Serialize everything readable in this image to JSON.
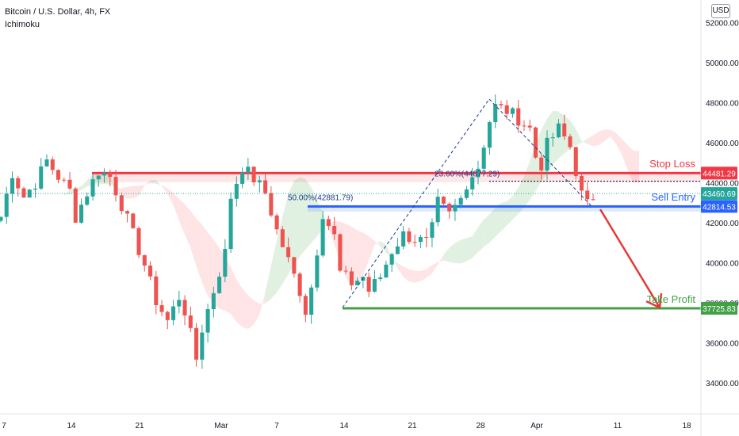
{
  "header": {
    "title": "Bitcoin / U.S. Dollar, 4h, FX",
    "indicator": "Ichimoku",
    "currency_badge": "USD"
  },
  "colors": {
    "up": "#26a69a",
    "down": "#ef5350",
    "stop_loss": "#f23645",
    "sell_entry": "#2962ff",
    "take_profit": "#43a047",
    "cloud_green": "#c8e6c9",
    "cloud_red": "#ffcdd2",
    "fib": "#1e3a8a",
    "arrow": "#e53935"
  },
  "chart_data": {
    "type": "candlestick",
    "title": "Bitcoin / U.S. Dollar, 4h, FX",
    "ylim": [
      32000,
      52500
    ],
    "y_ticks": [
      34000,
      36000,
      38000,
      40000,
      42000,
      44000,
      46000,
      48000,
      50000,
      52000
    ],
    "y_tick_labels": [
      "34000.00",
      "36000.00",
      "38000.00",
      "40000.00",
      "42000.00",
      "44000.00",
      "46000.00",
      "48000.00",
      "50000.00",
      "52000.00"
    ],
    "x_tick_labels": [
      "7",
      "14",
      "21",
      "Mar",
      "7",
      "14",
      "21",
      "28",
      "Apr",
      "11",
      "18"
    ],
    "grid": false,
    "price_path": [
      [
        0,
        42300
      ],
      [
        2,
        44500
      ],
      [
        4,
        43300
      ],
      [
        6,
        44000
      ],
      [
        8,
        45100
      ],
      [
        10,
        44300
      ],
      [
        12,
        43600
      ],
      [
        13,
        42300
      ],
      [
        15,
        43500
      ],
      [
        17,
        44600
      ],
      [
        19,
        44300
      ],
      [
        21,
        42900
      ],
      [
        23,
        41400
      ],
      [
        25,
        39900
      ],
      [
        27,
        38100
      ],
      [
        29,
        37100
      ],
      [
        31,
        38300
      ],
      [
        32,
        37600
      ],
      [
        33,
        36400
      ],
      [
        34,
        35200
      ],
      [
        35,
        36700
      ],
      [
        37,
        38600
      ],
      [
        39,
        40500
      ],
      [
        40,
        43300
      ],
      [
        42,
        44800
      ],
      [
        44,
        44200
      ],
      [
        46,
        43500
      ],
      [
        48,
        41600
      ],
      [
        50,
        40100
      ],
      [
        52,
        38600
      ],
      [
        53,
        37600
      ],
      [
        54,
        38800
      ],
      [
        56,
        42500
      ],
      [
        58,
        41300
      ],
      [
        59,
        39500
      ],
      [
        61,
        39000
      ],
      [
        63,
        39300
      ],
      [
        64,
        38600
      ],
      [
        66,
        39300
      ],
      [
        68,
        40600
      ],
      [
        70,
        41400
      ],
      [
        72,
        41200
      ],
      [
        74,
        41000
      ],
      [
        75,
        41700
      ],
      [
        76,
        43000
      ],
      [
        78,
        42400
      ],
      [
        80,
        43200
      ],
      [
        81,
        44000
      ],
      [
        83,
        44800
      ],
      [
        85,
        47100
      ],
      [
        86,
        47800
      ],
      [
        88,
        47600
      ],
      [
        90,
        47200
      ],
      [
        92,
        46700
      ],
      [
        93,
        45300
      ],
      [
        94,
        44900
      ],
      [
        95,
        45900
      ],
      [
        97,
        46700
      ],
      [
        99,
        45800
      ],
      [
        100,
        44600
      ],
      [
        101,
        43400
      ],
      [
        102,
        42900
      ],
      [
        103,
        43300
      ]
    ],
    "levels": [
      {
        "name": "Stop Loss",
        "value": 44481.29,
        "label": "44481.29"
      },
      {
        "name": "Sell Entry",
        "value": 42814.53,
        "label": "42814.53"
      },
      {
        "name": "Take Profit",
        "value": 37725.83,
        "label": "37725.83"
      }
    ],
    "current_price": {
      "value": 43460.69,
      "label": "43460.69"
    },
    "fib_levels": [
      {
        "label": "23.60%(44077.29)",
        "value": 44077.29
      },
      {
        "label": "50.00%(42881.79)",
        "value": 42881.79
      }
    ]
  },
  "annotations": {
    "stop_loss_text": "Stop Loss",
    "sell_entry_text": "Sell Entry",
    "take_profit_text": "Take Profit"
  }
}
